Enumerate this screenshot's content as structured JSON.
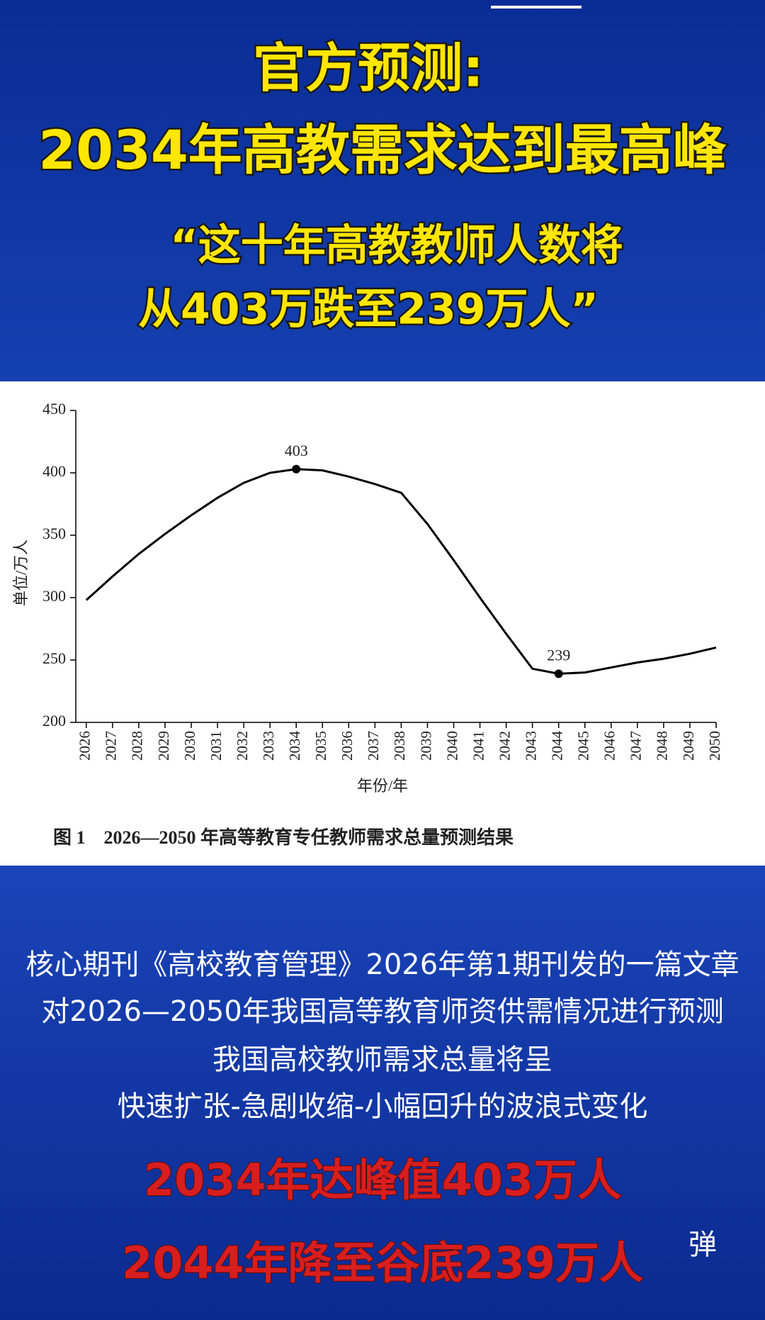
{
  "header": {
    "line1": "官方预测:",
    "line2": "2034年高教需求达到最高峰",
    "quote1": "“这十年高教教师人数将",
    "quote2": "从403万跌至239万人”"
  },
  "chart_data": {
    "type": "line",
    "x_label": "年份/年",
    "y_label": "单位/万人",
    "caption": "图 1　2026—2050 年高等教育专任教师需求总量预测结果",
    "x": [
      2026,
      2027,
      2028,
      2029,
      2030,
      2031,
      2032,
      2033,
      2034,
      2035,
      2036,
      2037,
      2038,
      2039,
      2040,
      2041,
      2042,
      2043,
      2044,
      2045,
      2046,
      2047,
      2048,
      2049,
      2050
    ],
    "values": [
      298,
      317,
      335,
      351,
      366,
      380,
      392,
      400,
      403,
      402,
      397,
      391,
      384,
      359,
      330,
      300,
      271,
      243,
      239,
      240,
      244,
      248,
      251,
      255,
      260
    ],
    "color": "#000000",
    "xlim": [
      2025.6,
      2050
    ],
    "xticks": [
      2026,
      2027,
      2028,
      2029,
      2030,
      2031,
      2032,
      2033,
      2034,
      2035,
      2036,
      2037,
      2038,
      2039,
      2040,
      2041,
      2042,
      2043,
      2044,
      2045,
      2046,
      2047,
      2048,
      2049,
      2050
    ],
    "ylim": [
      200,
      450
    ],
    "yticks": [
      200,
      250,
      300,
      350,
      400,
      450
    ]
  },
  "body": {
    "lines": [
      "核心期刊《高校教育管理》2026年第1期刊发的一篇文章",
      "对2026—2050年我国高等教育师资供需情况进行预测",
      "我国高校教师需求总量将呈",
      "快速扩张-急剧收缩-小幅回升的波浪式变化"
    ],
    "highlight1": "2034年达峰值403万人",
    "highlight2": "2044年降至谷底239万人",
    "overlay": "弹"
  }
}
